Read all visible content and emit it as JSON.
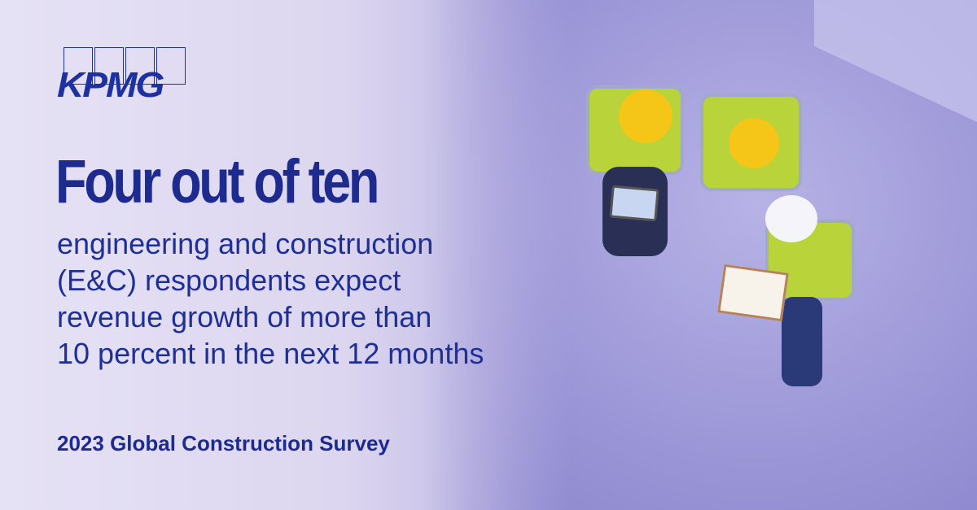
{
  "logo": {
    "text": "KPMG"
  },
  "headline": "Four out of ten",
  "body_lines": [
    "engineering and construction",
    "(E&C) respondents expect",
    "revenue growth of more than",
    "10 percent in the next 12 months"
  ],
  "footer": "2023 Global Construction Survey",
  "colors": {
    "text": "#1d2b8f",
    "background": "#dcd6f0",
    "helmet_yellow": "#f5c518",
    "vest": "#b9d43b"
  }
}
